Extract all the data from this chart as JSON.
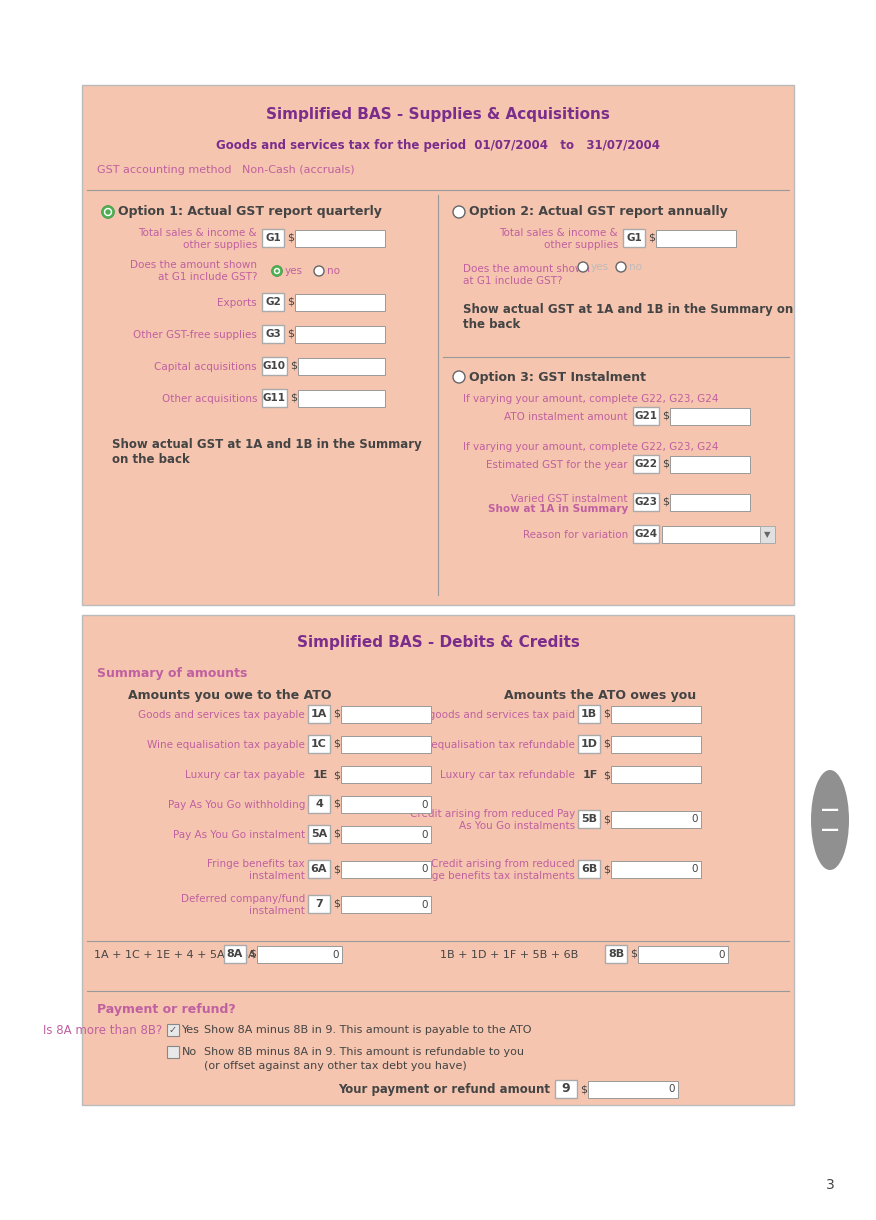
{
  "title1": "Simplified BAS - Supplies & Acquisitions",
  "title2": "Simplified BAS - Debits & Credits",
  "period_label": "Goods and services tax for the period  01/07/2004   to   31/07/2004",
  "gst_method": "GST accounting method   Non-Cash (accruals)",
  "bg_color": "#F5C5B0",
  "white": "#FFFFFF",
  "title_color": "#7B2D8B",
  "label_color": "#C060A0",
  "dark_text": "#444444",
  "bold_pink": "#C060A0",
  "box_border": "#AAAAAA",
  "page_bg": "#FFFFFF",
  "input_bg": "#FFFFFF",
  "input_border": "#999999",
  "divider_color": "#999999",
  "option1_label": "Option 1: Actual GST report quarterly",
  "option2_label": "Option 2: Actual GST report annually",
  "option3_label": "Option 3: GST Instalment",
  "summary_label": "Summary of amounts",
  "owe_ato_label": "Amounts you owe to the ATO",
  "ato_owes_label": "Amounts the ATO owes you",
  "payment_refund": "Payment or refund?",
  "is_8a_more": "Is 8A more than 8B?",
  "your_payment": "Your payment or refund amount",
  "8a_formula": "1A + 1C + 1E + 4 + 5A + 6A + 7",
  "8b_formula": "1B + 1D + 1F + 5B + 6B",
  "page_num": "3"
}
